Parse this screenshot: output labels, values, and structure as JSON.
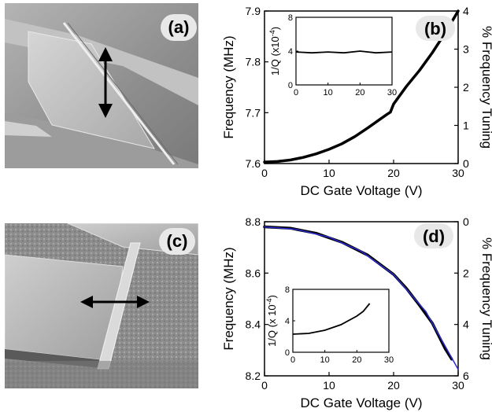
{
  "panels": {
    "a": {
      "letter": "(a)",
      "arrow": "double-arrow-vertical"
    },
    "c": {
      "letter": "(c)",
      "arrow": "double-arrow-horizontal"
    }
  },
  "colors": {
    "data": "#000000",
    "fit_line": "#2b2bd6",
    "image_base": "#9a9a9a"
  },
  "chart_data": [
    {
      "panel": "(b)",
      "type": "line",
      "xlabel": "DC Gate Voltage (V)",
      "ylabel": "Frequency (MHz)",
      "ylabel_right": "% Frequency Tuning",
      "xlim": [
        0,
        30
      ],
      "ylim": [
        7.6,
        7.9
      ],
      "ylim_right": [
        0,
        4
      ],
      "xticks": [
        "0",
        "10",
        "20",
        "30"
      ],
      "yticks": [
        "7.6",
        "7.7",
        "7.8",
        "7.9"
      ],
      "yticks_right": [
        "0",
        "1",
        "2",
        "3",
        "4"
      ],
      "series": [
        {
          "x": [
            0,
            2,
            4,
            6,
            8,
            10,
            12,
            14,
            16,
            18,
            19,
            19.5,
            20,
            22,
            24,
            26,
            28,
            30
          ],
          "y": [
            7.603,
            7.604,
            7.607,
            7.612,
            7.619,
            7.628,
            7.639,
            7.653,
            7.67,
            7.688,
            7.697,
            7.701,
            7.717,
            7.752,
            7.783,
            7.818,
            7.857,
            7.9
          ]
        }
      ],
      "inset": {
        "type": "line",
        "ylabel": "1/Q (x10",
        "ylabel_exp": "-4",
        "xlim": [
          0,
          30
        ],
        "ylim": [
          0,
          8
        ],
        "xticks": [
          "0",
          "10",
          "20",
          "30"
        ],
        "yticks": [
          "0",
          "4",
          "8"
        ],
        "series": [
          {
            "x": [
              0,
              5,
              10,
              15,
              20,
              25,
              30
            ],
            "y": [
              3.9,
              3.8,
              3.9,
              3.8,
              4.0,
              3.8,
              3.9
            ]
          }
        ]
      }
    },
    {
      "panel": "(d)",
      "type": "line",
      "xlabel": "DC Gate Voltage (V)",
      "ylabel": "Frequency (MHz)",
      "ylabel_right": "% Frequency Tuning",
      "xlim": [
        0,
        30
      ],
      "ylim": [
        8.2,
        8.8
      ],
      "ylim_right": [
        0,
        6
      ],
      "xticks": [
        "0",
        "10",
        "20",
        "30"
      ],
      "yticks": [
        "8.2",
        "8.4",
        "8.6",
        "8.8"
      ],
      "yticks_right": [
        "0",
        "2",
        "4",
        "6"
      ],
      "series": [
        {
          "x": [
            0,
            4,
            8,
            12,
            16,
            20,
            22,
            24,
            26,
            28,
            29
          ],
          "y": [
            8.78,
            8.775,
            8.755,
            8.72,
            8.67,
            8.595,
            8.54,
            8.475,
            8.405,
            8.305,
            8.265
          ]
        },
        {
          "x": [
            0,
            5,
            10,
            15,
            20,
            25,
            30
          ],
          "y": [
            8.78,
            8.77,
            8.74,
            8.685,
            8.595,
            8.45,
            8.225
          ]
        }
      ],
      "inset": {
        "type": "line",
        "ylabel": "1/Q (x 10",
        "ylabel_exp": "-4",
        "xlim": [
          0,
          30
        ],
        "ylim": [
          0,
          8
        ],
        "xticks": [
          "0",
          "10",
          "20",
          "30"
        ],
        "yticks": [
          "0",
          "4",
          "8"
        ],
        "series": [
          {
            "x": [
              0,
              5,
              10,
              15,
              20,
              22,
              24
            ],
            "y": [
              2.3,
              2.4,
              2.8,
              3.5,
              4.6,
              5.2,
              6.2
            ]
          }
        ]
      }
    }
  ]
}
